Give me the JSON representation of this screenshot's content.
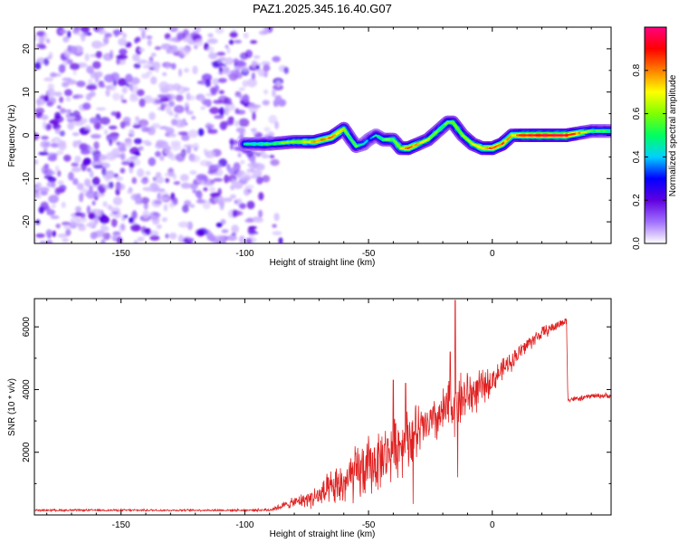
{
  "figure_title": "PAZ1.2025.345.16.40.G07",
  "chart_data": [
    {
      "type": "heatmap",
      "title": "PAZ1.2025.345.16.40.G07",
      "xlabel": "Height of straight line (km)",
      "ylabel": "Frequency (Hz)",
      "xlim": [
        -185,
        48
      ],
      "ylim": [
        -25,
        25
      ],
      "xticks": [
        -150,
        -100,
        -50,
        0
      ],
      "yticks": [
        -20,
        -10,
        0,
        10,
        20
      ],
      "xtick_labels": [
        "-150",
        "-100",
        "-50",
        "0"
      ],
      "ytick_labels": [
        "-20",
        "-10",
        "0",
        "10",
        "20"
      ],
      "noise_region_x": [
        -185,
        -82
      ],
      "ridge": {
        "x": [
          -100,
          -90,
          -80,
          -72,
          -65,
          -60,
          -57,
          -55,
          -52,
          -50,
          -47,
          -44,
          -40,
          -37,
          -34,
          -30,
          -26,
          -22,
          -18,
          -16,
          -12,
          -8,
          -4,
          0,
          4,
          8,
          12,
          20,
          30,
          40,
          48
        ],
        "freq": [
          -2,
          -2,
          -1.5,
          -1.5,
          -0.5,
          1.5,
          -1,
          -2.5,
          -2,
          -1,
          0,
          -1,
          -1,
          -3,
          -3,
          -2,
          -1,
          1,
          3,
          3,
          0,
          -2,
          -3,
          -3,
          -2,
          0,
          0,
          0,
          0,
          1,
          1
        ],
        "amplitude": [
          0.45,
          0.5,
          0.6,
          0.75,
          0.8,
          0.65,
          0.5,
          0.55,
          0.4,
          0.35,
          0.45,
          0.55,
          0.6,
          0.65,
          0.85,
          0.7,
          0.6,
          0.55,
          0.55,
          0.6,
          0.6,
          0.65,
          0.75,
          0.85,
          0.8,
          0.7,
          0.9,
          0.95,
          0.95,
          0.55,
          0.5
        ]
      },
      "colorbar": {
        "label": "Normalized spectral amplitude",
        "range": [
          0,
          1
        ],
        "ticks": [
          0.0,
          0.2,
          0.4,
          0.6,
          0.8
        ],
        "tick_labels": [
          "0.0",
          "0.2",
          "0.4",
          "0.6",
          "0.8"
        ],
        "colors": [
          "#ffffff",
          "#a070ff",
          "#6000e0",
          "#0000ff",
          "#00d0ff",
          "#00ff60",
          "#80ff00",
          "#ffff00",
          "#ff8000",
          "#ff0000",
          "#ff0080"
        ]
      }
    },
    {
      "type": "line",
      "xlabel": "Height of straight line (km)",
      "ylabel": "SNR (10 * v/v)",
      "xlim": [
        -185,
        48
      ],
      "ylim": [
        0,
        6900
      ],
      "xticks": [
        -150,
        -100,
        -50,
        0
      ],
      "yticks": [
        2000,
        4000,
        6000
      ],
      "xtick_labels": [
        "-150",
        "-100",
        "-50",
        "0"
      ],
      "ytick_labels": [
        "2000",
        "4000",
        "6000"
      ],
      "color": "#e02020",
      "series": [
        {
          "name": "SNR",
          "envelope_x": [
            -185,
            -150,
            -100,
            -90,
            -80,
            -75,
            -70,
            -65,
            -60,
            -55,
            -50,
            -45,
            -40,
            -35,
            -30,
            -29,
            -25,
            -20,
            -15,
            -10,
            -5,
            0,
            5,
            10,
            15,
            20,
            25,
            30,
            30.5,
            35,
            40,
            48
          ],
          "envelope_y": [
            150,
            150,
            150,
            160,
            400,
            500,
            600,
            800,
            1000,
            1300,
            1500,
            1800,
            2100,
            2400,
            2600,
            2700,
            2900,
            3200,
            3600,
            3800,
            4000,
            4300,
            4700,
            5100,
            5500,
            5800,
            6000,
            6200,
            3700,
            3700,
            3800,
            3800
          ],
          "noise_amplitude": [
            40,
            40,
            40,
            60,
            200,
            300,
            500,
            700,
            900,
            1100,
            1200,
            1100,
            1100,
            1200,
            1200,
            900,
            800,
            1000,
            1200,
            1000,
            700,
            500,
            400,
            350,
            300,
            250,
            200,
            150,
            120,
            100,
            100,
            100
          ],
          "spikes": [
            [
              -15,
              6850
            ],
            [
              -17,
              5200
            ],
            [
              -35,
              4200
            ],
            [
              -40,
              4300
            ],
            [
              -32,
              350
            ],
            [
              -14,
              1200
            ]
          ]
        }
      ]
    }
  ]
}
